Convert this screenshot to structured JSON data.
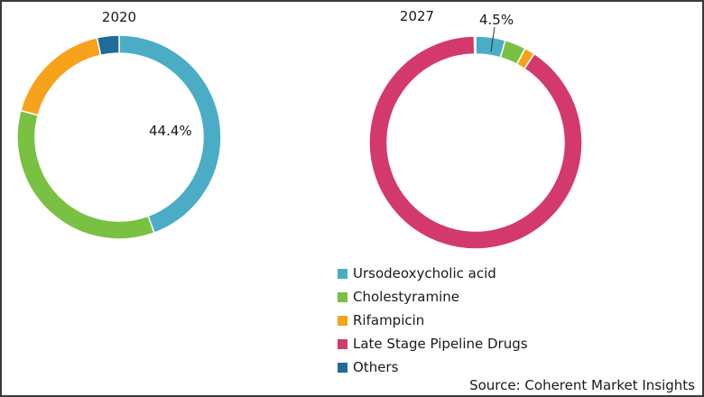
{
  "chart_data": [
    {
      "type": "pie",
      "title": "2020",
      "categories": [
        "Ursodeoxycholic acid",
        "Cholestyramine",
        "Rifampicin",
        "Late Stage Pipeline Drugs",
        "Others"
      ],
      "values": [
        44.4,
        34.8,
        17.3,
        0,
        3.5
      ],
      "data_labels": [
        {
          "category": "Ursodeoxycholic acid",
          "text": "44.4%"
        }
      ]
    },
    {
      "type": "pie",
      "title": "2027",
      "categories": [
        "Ursodeoxycholic acid",
        "Cholestyramine",
        "Rifampicin",
        "Late Stage Pipeline Drugs",
        "Others"
      ],
      "values": [
        4.5,
        3.2,
        1.6,
        90.5,
        0.2
      ],
      "data_labels": [
        {
          "category": "Ursodeoxycholic acid",
          "text": "4.5%"
        }
      ]
    }
  ],
  "legend": {
    "placement": "bottom-right",
    "items": [
      {
        "label": "Ursodeoxycholic acid",
        "color": "#4bacc6"
      },
      {
        "label": "Cholestyramine",
        "color": "#7ac143"
      },
      {
        "label": "Rifampicin",
        "color": "#f7a21b"
      },
      {
        "label": "Late Stage Pipeline Drugs",
        "color": "#d4396c"
      },
      {
        "label": "Others",
        "color": "#1f6b9a"
      }
    ]
  },
  "source": "Source: Coherent Market Insights"
}
